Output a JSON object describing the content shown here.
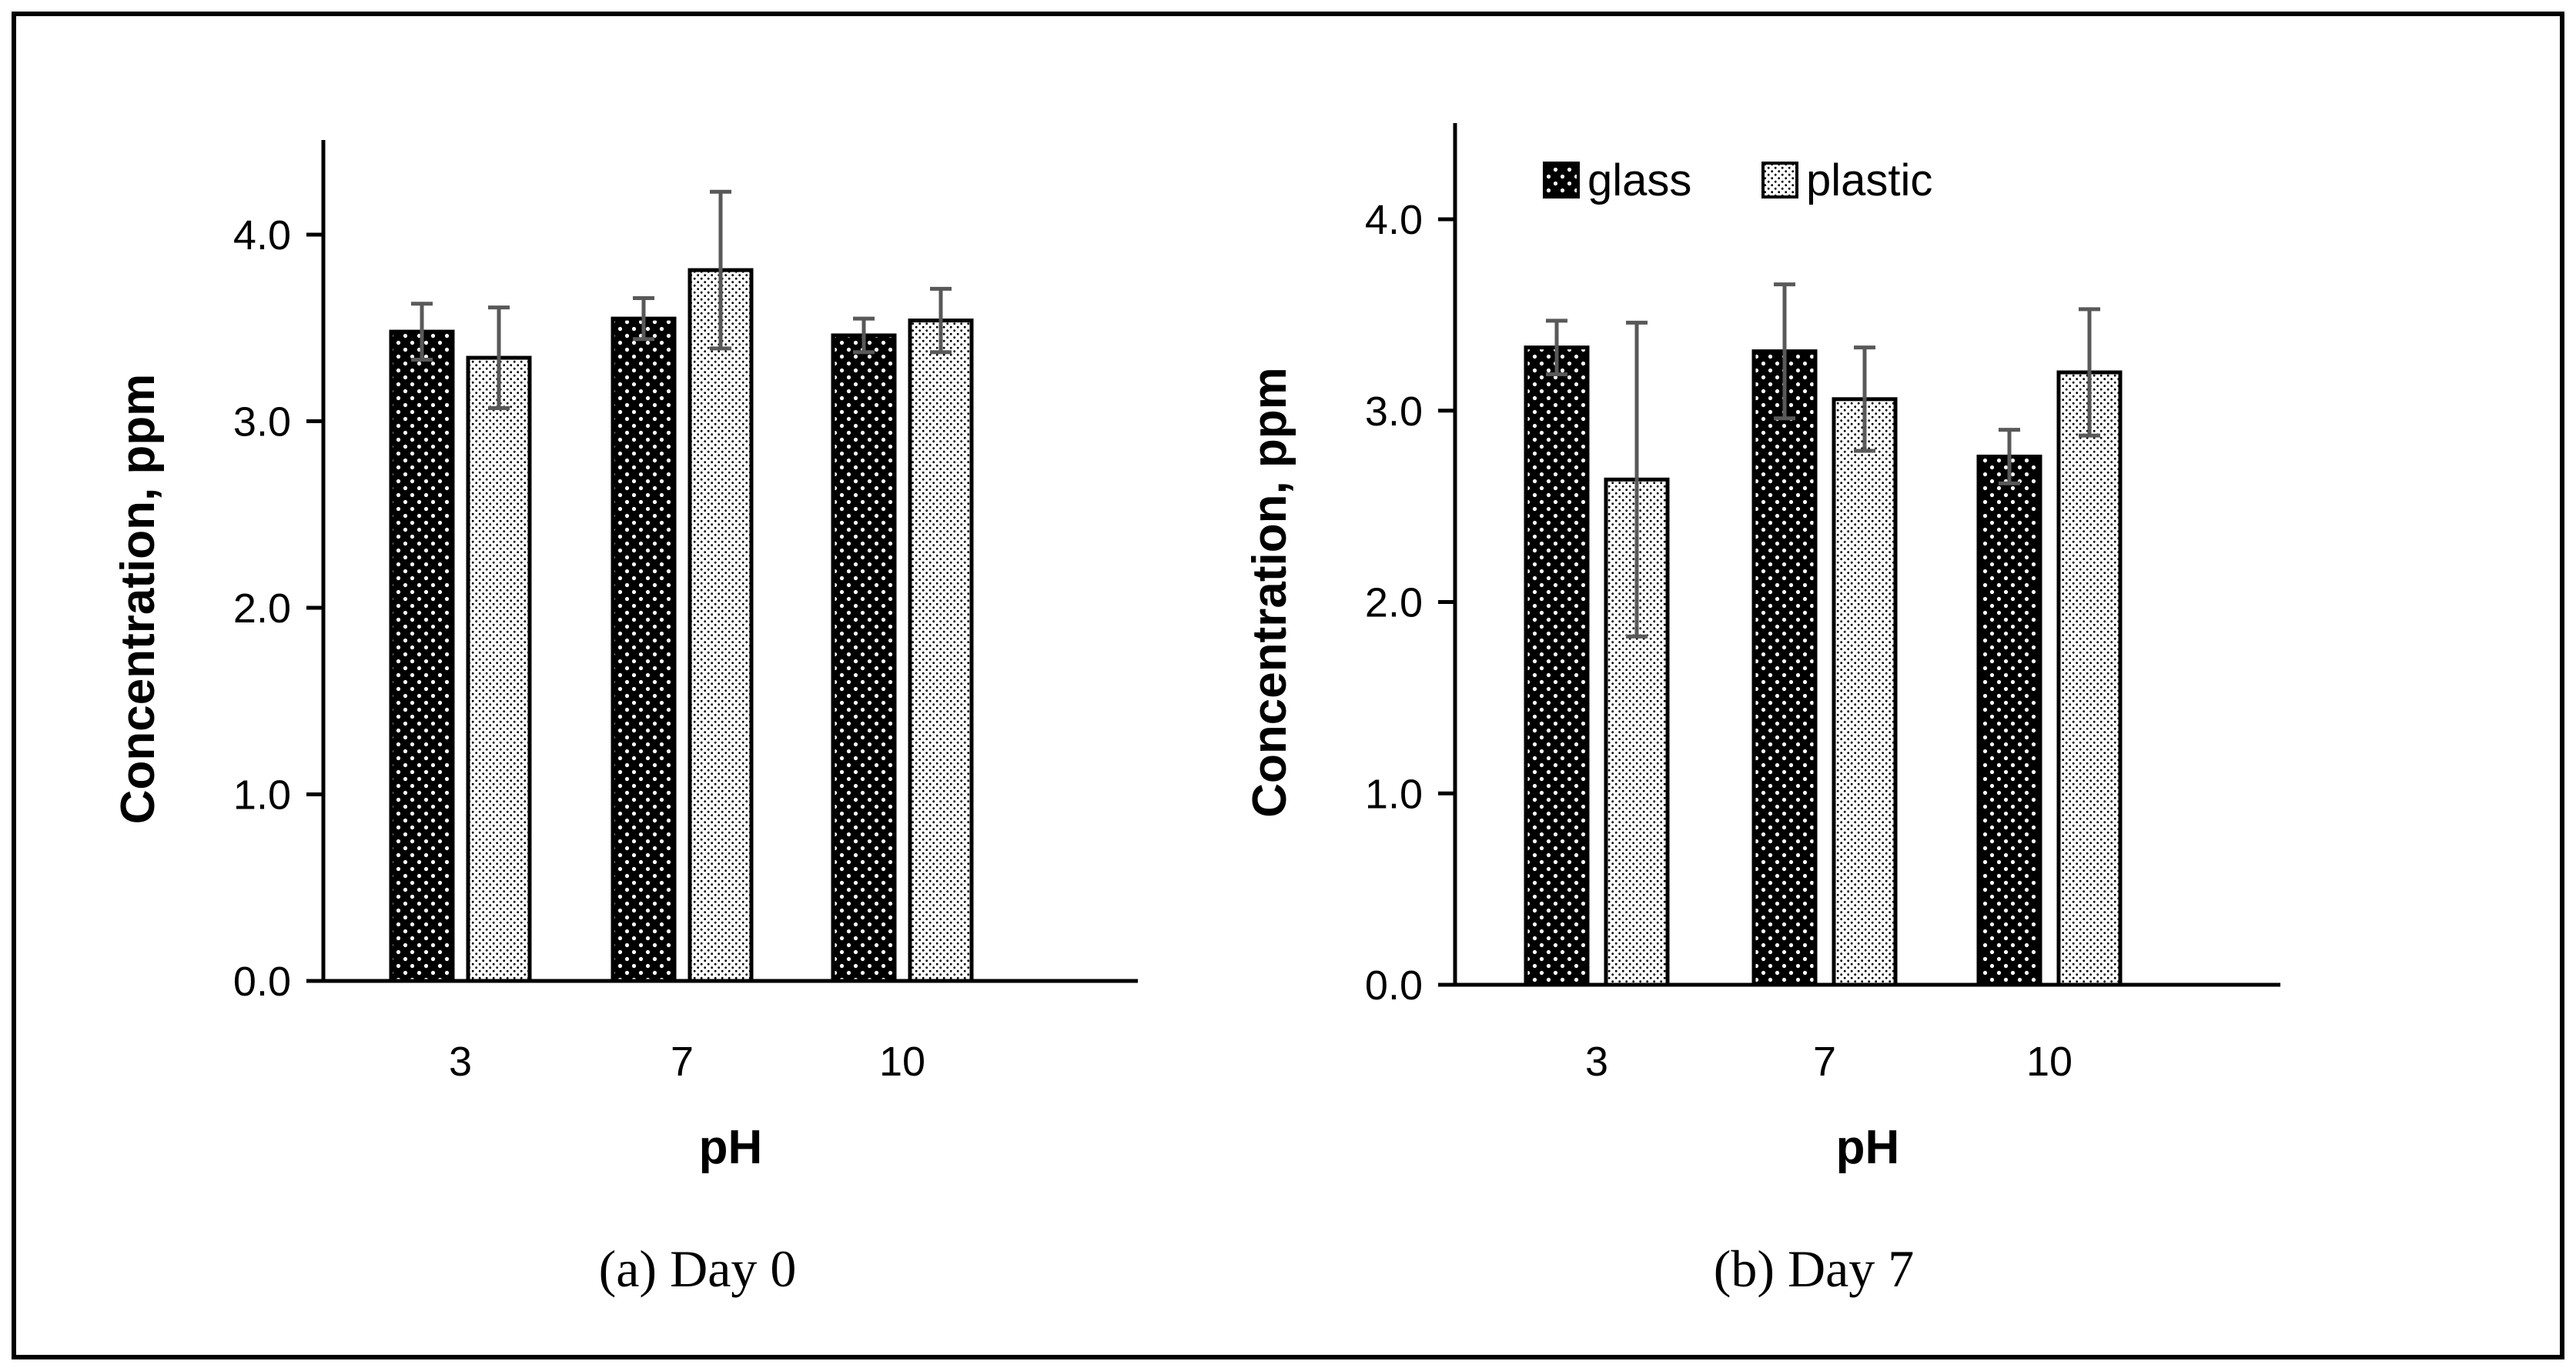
{
  "colors": {
    "glass": "#000000",
    "plastic": "#ffffff",
    "error_bar": "#595959",
    "axis": "#000000",
    "frame": "#000000"
  },
  "legend": {
    "items": [
      {
        "label": "glass",
        "pattern": "glass"
      },
      {
        "label": "plastic",
        "pattern": "plastic"
      }
    ]
  },
  "chart_data": [
    {
      "type": "bar",
      "caption": "(a)  Day 0",
      "categories": [
        "3",
        "7",
        "10"
      ],
      "xlabel": "pH",
      "ylabel": "Concentration, ppm",
      "ylim": [
        0,
        4.5
      ],
      "yticks": [
        "0.0",
        "1.0",
        "2.0",
        "3.0",
        "4.0"
      ],
      "series": [
        {
          "name": "glass",
          "values": [
            3.48,
            3.55,
            3.46
          ],
          "errors": [
            0.15,
            0.11,
            0.09
          ]
        },
        {
          "name": "plastic",
          "values": [
            3.34,
            3.81,
            3.54
          ],
          "errors": [
            0.27,
            0.42,
            0.17
          ]
        }
      ]
    },
    {
      "type": "bar",
      "caption": "(b) Day 7",
      "categories": [
        "3",
        "7",
        "10"
      ],
      "xlabel": "pH",
      "ylabel": "Concentration, ppm",
      "ylim": [
        0,
        4.5
      ],
      "yticks": [
        "0.0",
        "1.0",
        "2.0",
        "3.0",
        "4.0"
      ],
      "series": [
        {
          "name": "glass",
          "values": [
            3.33,
            3.31,
            2.76
          ],
          "errors": [
            0.14,
            0.35,
            0.14
          ]
        },
        {
          "name": "plastic",
          "values": [
            2.64,
            3.06,
            3.2
          ],
          "errors": [
            0.82,
            0.27,
            0.33
          ]
        }
      ]
    }
  ]
}
